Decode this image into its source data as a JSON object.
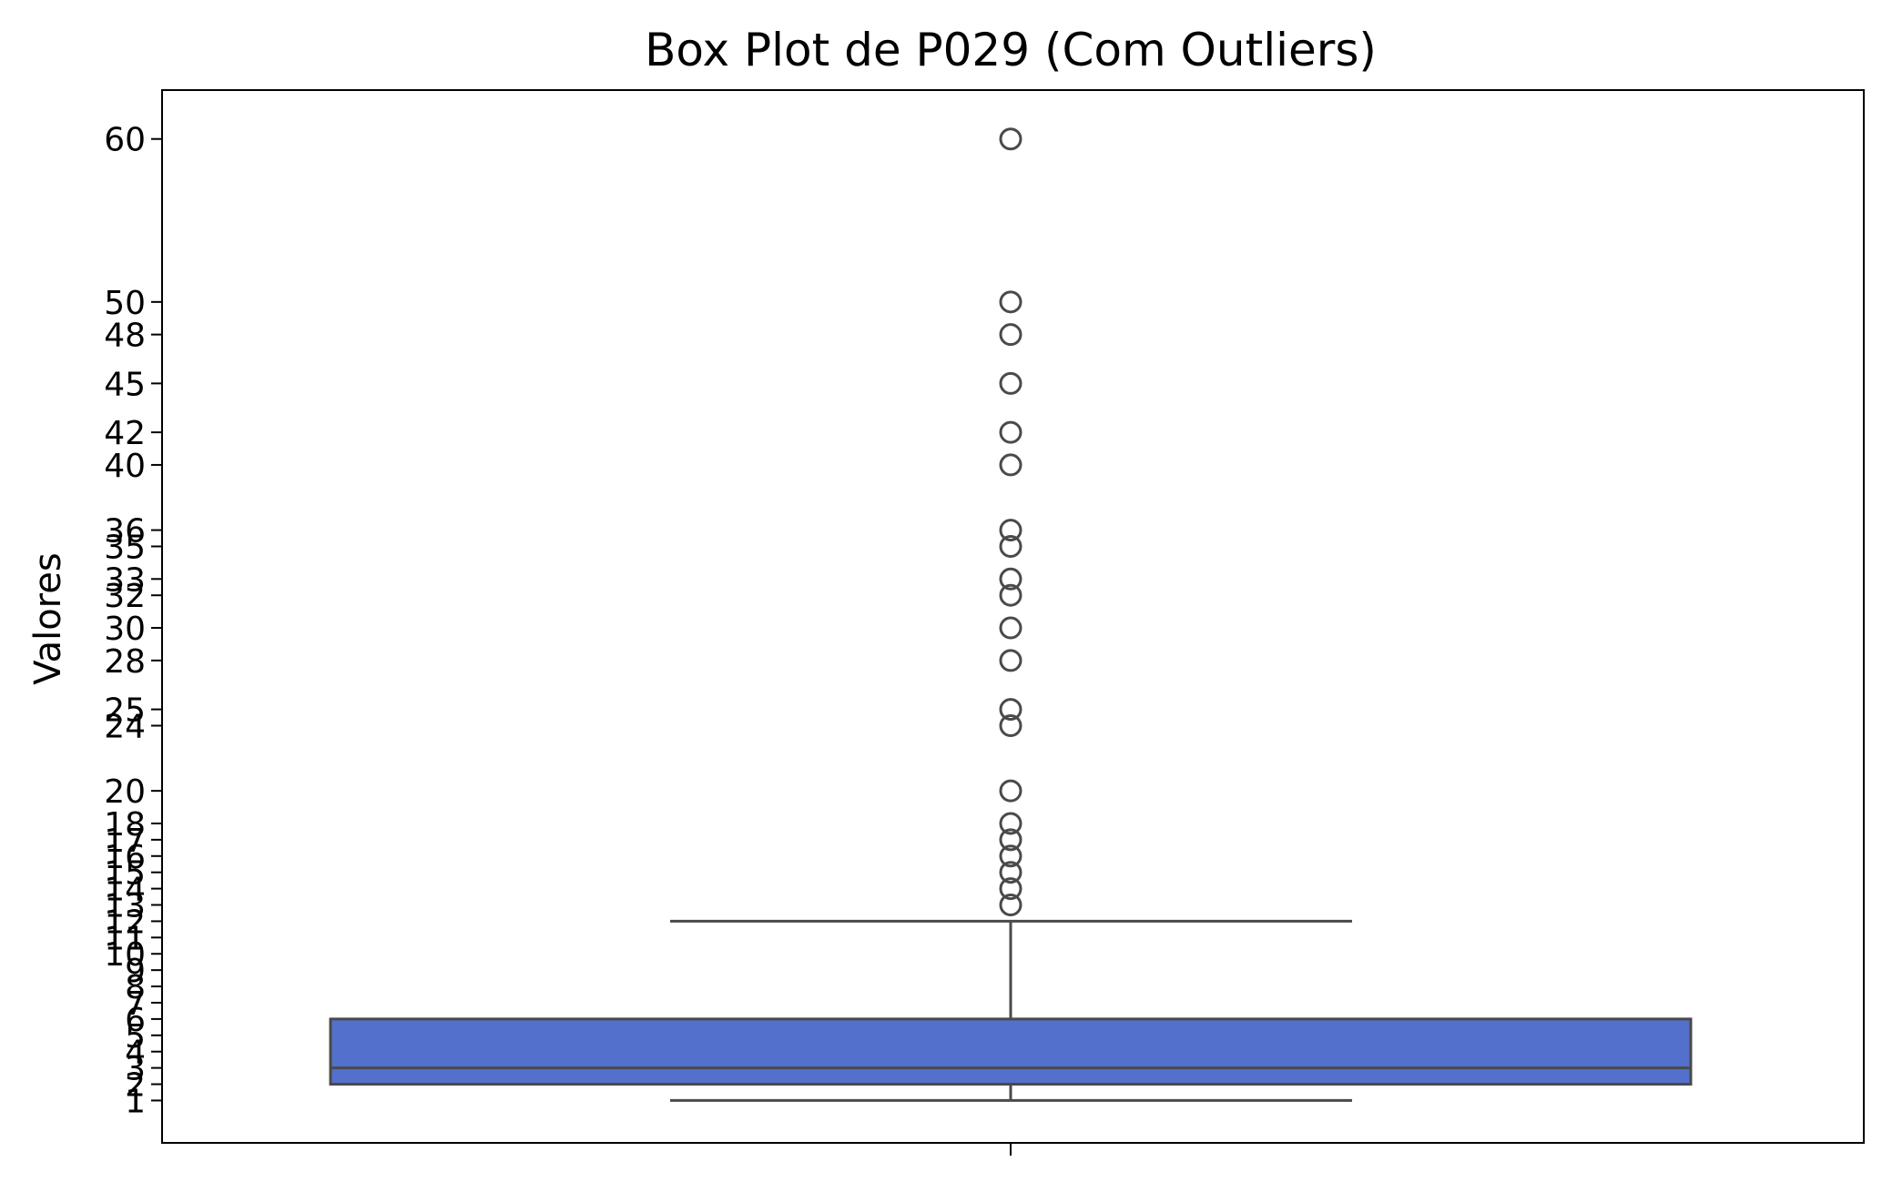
{
  "chart_data": {
    "type": "box",
    "title": "Box Plot de P029 (Com Outliers)",
    "xlabel": "",
    "ylabel": "Valores",
    "ylim": [
      -1.6,
      63
    ],
    "grid": false,
    "y_ticks": [
      1,
      2,
      3,
      4,
      5,
      6,
      7,
      8,
      9,
      10,
      11,
      12,
      13,
      14,
      15,
      16,
      17,
      18,
      20,
      24,
      25,
      28,
      30,
      32,
      33,
      35,
      36,
      40,
      42,
      45,
      48,
      50,
      60
    ],
    "box": {
      "whisker_low": 1,
      "q1": 2,
      "median": 3,
      "q3": 6,
      "whisker_high": 12
    },
    "outliers": [
      13,
      14,
      15,
      16,
      17,
      18,
      20,
      24,
      25,
      28,
      30,
      32,
      33,
      35,
      36,
      40,
      42,
      45,
      48,
      50,
      60
    ],
    "colors": {
      "box_fill": "#5371cc",
      "box_edge": "#4a4a4a",
      "axes": "#000000"
    }
  }
}
